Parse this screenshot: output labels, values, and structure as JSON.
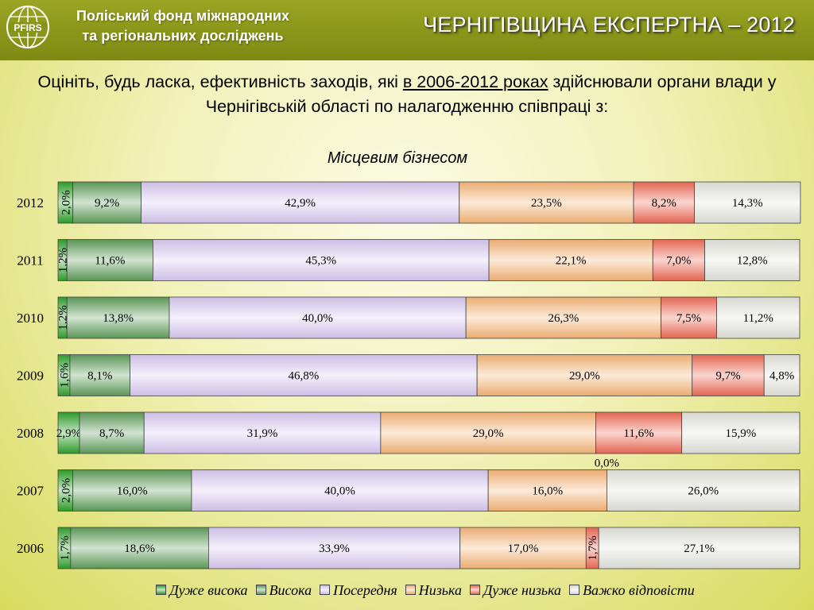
{
  "header": {
    "org_line1": "Поліський фонд міжнародних",
    "org_line2": "та регіональних досліджень",
    "logo_text": "PFIRS",
    "title": "ЧЕРНІГІВЩИНА ЕКСПЕРТНА – 2012"
  },
  "question": {
    "part1": "Оцініть, будь ласка, ефективність заходів, які ",
    "underlined": "в 2006-2012 роках",
    "part2": " здійснювали органи влади у Чернігівській області по налагодженню співпраці з:"
  },
  "chart_data": {
    "type": "bar",
    "orientation": "horizontal",
    "stacked": true,
    "percent_stacked": true,
    "title": "Місцевим бізнесом",
    "categories": [
      "2012",
      "2011",
      "2010",
      "2009",
      "2008",
      "2007",
      "2006"
    ],
    "series": [
      {
        "name": "Дуже висока",
        "color": "#2ea12a",
        "values": [
          2.0,
          1.2,
          1.2,
          1.6,
          2.9,
          2.0,
          1.7
        ],
        "labels": [
          "2,0%",
          "1,2%",
          "1,2%",
          "1,6%",
          "2,9%",
          "2,0%",
          "1,7%"
        ]
      },
      {
        "name": "Висока",
        "color": "#5f9d5a",
        "values": [
          9.2,
          11.6,
          13.8,
          8.1,
          8.7,
          16.0,
          18.6
        ],
        "labels": [
          "9,2%",
          "11,6%",
          "13,8%",
          "8,1%",
          "8,7%",
          "16,0%",
          "18,6%"
        ]
      },
      {
        "name": "Посередня",
        "color": "#d7c8f0",
        "values": [
          42.9,
          45.3,
          40.0,
          46.8,
          31.9,
          40.0,
          33.9
        ],
        "labels": [
          "42,9%",
          "45,3%",
          "40,0%",
          "46,8%",
          "31,9%",
          "40,0%",
          "33,9%"
        ]
      },
      {
        "name": "Низька",
        "color": "#f6b577",
        "values": [
          23.5,
          22.1,
          26.3,
          29.0,
          29.0,
          16.0,
          17.0
        ],
        "labels": [
          "23,5%",
          "22,1%",
          "26,3%",
          "29,0%",
          "29,0%",
          "16,0%",
          "17,0%"
        ]
      },
      {
        "name": "Дуже низька",
        "color": "#ef6a55",
        "values": [
          8.2,
          7.0,
          7.5,
          9.7,
          11.6,
          0.0,
          1.7
        ],
        "labels": [
          "8,2%",
          "7,0%",
          "7,5%",
          "9,7%",
          "11,6%",
          "0,0%",
          "1,7%"
        ]
      },
      {
        "name": "Важко відповісти",
        "color": "#e2e2dc",
        "values": [
          14.3,
          12.8,
          11.2,
          4.8,
          15.9,
          26.0,
          27.1
        ],
        "labels": [
          "14,3%",
          "12,8%",
          "11,2%",
          "4,8%",
          "15,9%",
          "26,0%",
          "27,1%"
        ]
      }
    ],
    "xlim": [
      0,
      100
    ],
    "grid": false,
    "legend_position": "bottom"
  }
}
